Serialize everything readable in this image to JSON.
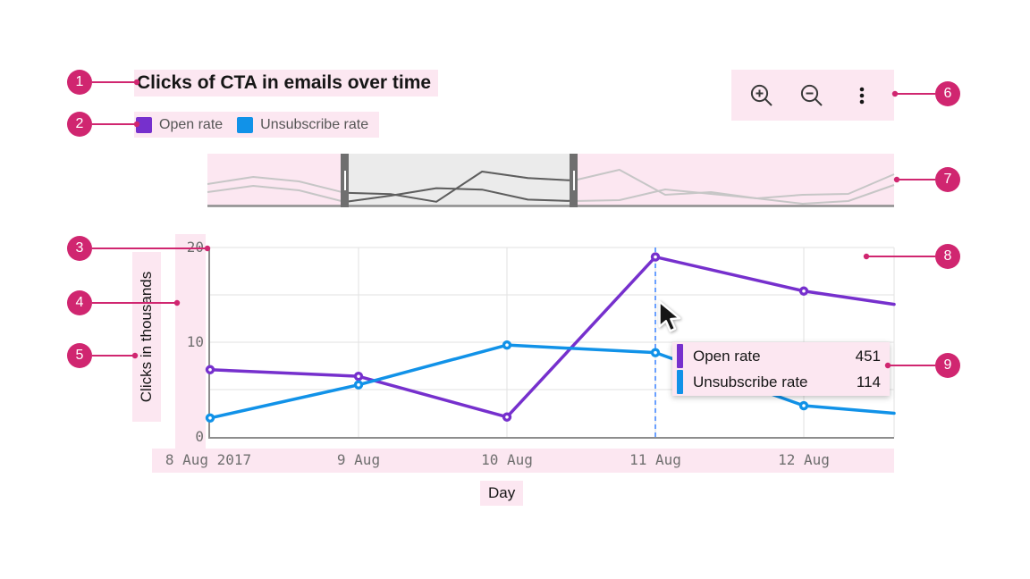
{
  "header": {
    "title": "Clicks of CTA in emails over time"
  },
  "legend": {
    "items": [
      {
        "label": "Open rate",
        "color": "#7630cd"
      },
      {
        "label": "Unsubscribe rate",
        "color": "#1192e8"
      }
    ]
  },
  "toolbar": {
    "icons": [
      "zoom-in",
      "zoom-out",
      "overflow-menu"
    ]
  },
  "chart_data": {
    "type": "line",
    "title": "Clicks of CTA in emails over time",
    "xlabel": "Day",
    "ylabel": "Clicks in thousands",
    "x_ticks": [
      "8 Aug 2017",
      "9 Aug",
      "10 Aug",
      "11 Aug",
      "12 Aug"
    ],
    "y_tick_labels": [
      "20",
      "10",
      "0"
    ],
    "ylim": [
      0,
      20
    ],
    "grid": true,
    "legend_position": "top-left",
    "series": [
      {
        "name": "Open rate",
        "color": "#7630cd",
        "values": [
          7.1,
          6.4,
          2.1,
          19,
          15.4
        ],
        "edge_value": 14
      },
      {
        "name": "Unsubscribe rate",
        "color": "#1192e8",
        "values": [
          2.0,
          5.5,
          9.7,
          8.9,
          3.3
        ],
        "edge_value": 2.5
      }
    ],
    "ruler": {
      "at_x_tick": "11 Aug",
      "style": "dashed",
      "color": "#4589ff"
    },
    "zoom_bar": {
      "selection": [
        3,
        8
      ],
      "line_color_outside": "#c6c6c6",
      "line_color_inside": "#5e5e5e",
      "series": [
        {
          "name": "Open rate",
          "values": [
            12,
            16,
            13.5,
            7.1,
            6.4,
            2.1,
            19,
            15.4,
            14,
            20,
            6,
            7.5,
            4,
            6,
            6.5,
            17.5
          ]
        },
        {
          "name": "Unsubscribe rate",
          "values": [
            7.5,
            11,
            8.5,
            2.0,
            5.5,
            9.7,
            8.9,
            3.3,
            2.5,
            3,
            9,
            6.5,
            4,
            1,
            2.5,
            11.5
          ]
        }
      ]
    }
  },
  "tooltip": {
    "rows": [
      {
        "label": "Open rate",
        "value": "451",
        "color": "#7630cd"
      },
      {
        "label": "Unsubscribe rate",
        "value": "114",
        "color": "#1192e8"
      }
    ]
  },
  "annotations": {
    "accent": "#d02670",
    "highlight": "#fce7f1",
    "callouts": [
      {
        "n": "1"
      },
      {
        "n": "2"
      },
      {
        "n": "3"
      },
      {
        "n": "4"
      },
      {
        "n": "5"
      },
      {
        "n": "6"
      },
      {
        "n": "7"
      },
      {
        "n": "8"
      },
      {
        "n": "9"
      }
    ]
  }
}
